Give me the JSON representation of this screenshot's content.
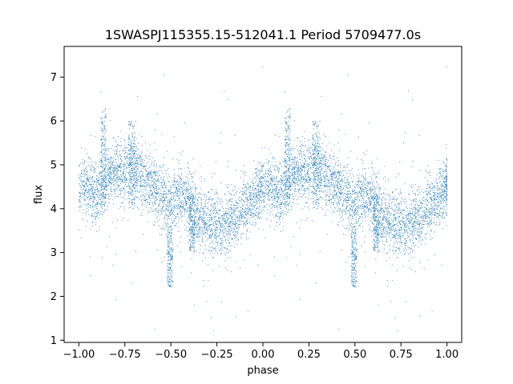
{
  "chart_data": {
    "type": "scatter",
    "title": "1SWASPJ115355.15-512041.1 Period 5709477.0s",
    "xlabel": "phase",
    "ylabel": "flux",
    "xlim": [
      -1.08,
      1.08
    ],
    "ylim": [
      0.95,
      7.7
    ],
    "xticks": [
      {
        "value": -1.0,
        "label": "−1.00"
      },
      {
        "value": -0.75,
        "label": "−0.75"
      },
      {
        "value": -0.5,
        "label": "−0.50"
      },
      {
        "value": -0.25,
        "label": "−0.25"
      },
      {
        "value": 0.0,
        "label": "0.00"
      },
      {
        "value": 0.25,
        "label": "0.25"
      },
      {
        "value": 0.5,
        "label": "0.50"
      },
      {
        "value": 0.75,
        "label": "0.75"
      },
      {
        "value": 1.0,
        "label": "1.00"
      }
    ],
    "yticks": [
      {
        "value": 1,
        "label": "1"
      },
      {
        "value": 2,
        "label": "2"
      },
      {
        "value": 3,
        "label": "3"
      },
      {
        "value": 4,
        "label": "4"
      },
      {
        "value": 5,
        "label": "5"
      },
      {
        "value": 6,
        "label": "6"
      },
      {
        "value": 7,
        "label": "7"
      }
    ],
    "grid": false,
    "legend": "none",
    "marker_color": "#1f77b4",
    "trend": {
      "description": "phase-folded light curve, phase -1 to 1 (pattern repeats every 1.0)",
      "x": [
        0.0,
        0.05,
        0.1,
        0.15,
        0.2,
        0.25,
        0.3,
        0.35,
        0.4,
        0.45,
        0.5,
        0.55,
        0.6,
        0.65,
        0.7,
        0.75,
        0.8,
        0.85,
        0.9,
        0.95,
        1.0
      ],
      "y": [
        4.5,
        4.5,
        4.3,
        4.7,
        4.9,
        4.8,
        4.9,
        4.7,
        4.5,
        4.3,
        4.1,
        4.3,
        4.2,
        3.8,
        3.7,
        3.6,
        3.6,
        3.9,
        4.0,
        4.2,
        4.5
      ],
      "spread": 0.35
    },
    "bursts": [
      {
        "x": [
          0.12,
          0.15
        ],
        "y_range": [
          4.2,
          6.3
        ]
      },
      {
        "x": [
          0.27,
          0.31
        ],
        "y_range": [
          4.0,
          6.0
        ]
      },
      {
        "x": [
          0.48,
          0.51
        ],
        "y_range": [
          2.2,
          3.6
        ]
      },
      {
        "x": [
          0.6,
          0.63
        ],
        "y_range": [
          3.0,
          4.3
        ]
      }
    ]
  }
}
